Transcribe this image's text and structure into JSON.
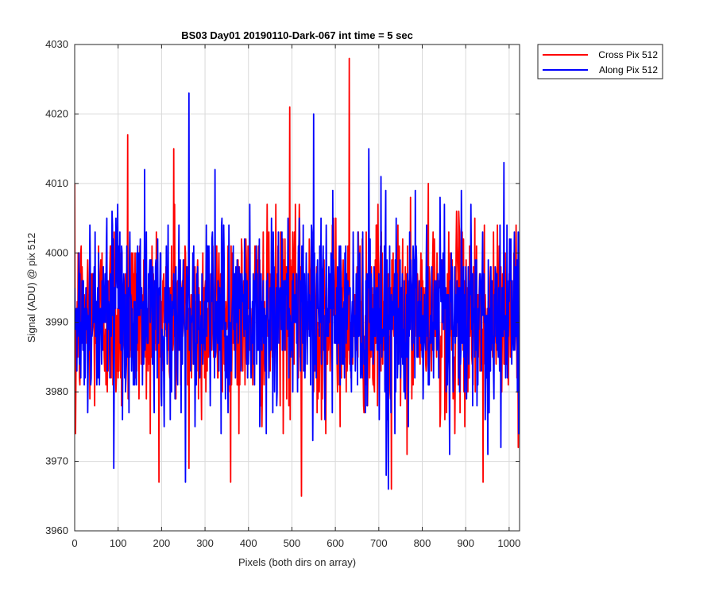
{
  "chart_data": {
    "type": "line",
    "title": "BS03 Day01 20190110-Dark-067 int time = 5 sec",
    "xlabel": "Pixels (both dirs on array)",
    "ylabel": "Signal (ADU) @ pix 512",
    "xlim": [
      0,
      1024
    ],
    "ylim": [
      3960,
      4030
    ],
    "xticks": [
      0,
      100,
      200,
      300,
      400,
      500,
      600,
      700,
      800,
      900,
      1000
    ],
    "yticks": [
      3960,
      3970,
      3980,
      3990,
      4000,
      4010,
      4020,
      4030
    ],
    "grid": true,
    "legend_placement": "outside-top-right",
    "series": [
      {
        "name": "Cross Pix 512",
        "color": "#ff0000",
        "noise_center": 3991,
        "noise_spread": 8,
        "min": 3965,
        "max": 4028,
        "peaks": [
          {
            "x": 122,
            "y": 4017
          },
          {
            "x": 228,
            "y": 4015
          },
          {
            "x": 495,
            "y": 4021
          },
          {
            "x": 632,
            "y": 4028
          }
        ],
        "troughs": [
          {
            "x": 2,
            "y": 3974
          },
          {
            "x": 263,
            "y": 3969
          },
          {
            "x": 522,
            "y": 3965
          },
          {
            "x": 729,
            "y": 3966
          },
          {
            "x": 940,
            "y": 3967
          }
        ]
      },
      {
        "name": "Along Pix 512",
        "color": "#0000ff",
        "noise_center": 3991,
        "noise_spread": 8,
        "min": 3966,
        "max": 4023,
        "peaks": [
          {
            "x": 263,
            "y": 4023
          },
          {
            "x": 550,
            "y": 4020
          },
          {
            "x": 988,
            "y": 4013
          },
          {
            "x": 705,
            "y": 4011
          }
        ],
        "troughs": [
          {
            "x": 90,
            "y": 3969
          },
          {
            "x": 255,
            "y": 3967
          },
          {
            "x": 722,
            "y": 3966
          },
          {
            "x": 1022,
            "y": 3974
          }
        ]
      }
    ]
  }
}
